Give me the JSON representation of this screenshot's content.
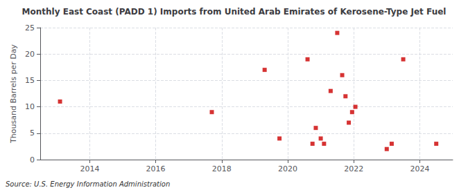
{
  "chart_data": {
    "type": "scatter",
    "title": "Monthly East Coast (PADD 1) Imports from United Arab Emirates of Kerosene-Type Jet Fuel",
    "ylabel": "Thousand Barrels per Day",
    "annotation": "Source: U.S. Energy Information Administration",
    "x": [
      2013.1,
      2017.7,
      2019.3,
      2019.75,
      2020.6,
      2020.75,
      2020.85,
      2021.0,
      2021.1,
      2021.3,
      2021.5,
      2021.65,
      2021.75,
      2021.85,
      2021.95,
      2022.05,
      2023.0,
      2023.15,
      2023.5,
      2024.5
    ],
    "values": [
      11,
      9,
      17,
      4,
      19,
      3,
      6,
      4,
      3,
      13,
      24,
      16,
      12,
      7,
      9,
      10,
      2,
      3,
      19,
      3
    ],
    "color": "#cc0000",
    "marker": "square",
    "xlim": [
      2012.5,
      2025.0
    ],
    "ylim": [
      0,
      25
    ],
    "xticks": [
      2014,
      2016,
      2018,
      2020,
      2022,
      2024
    ],
    "yticks": [
      0,
      5,
      10,
      15,
      20,
      25
    ],
    "grid": true
  }
}
